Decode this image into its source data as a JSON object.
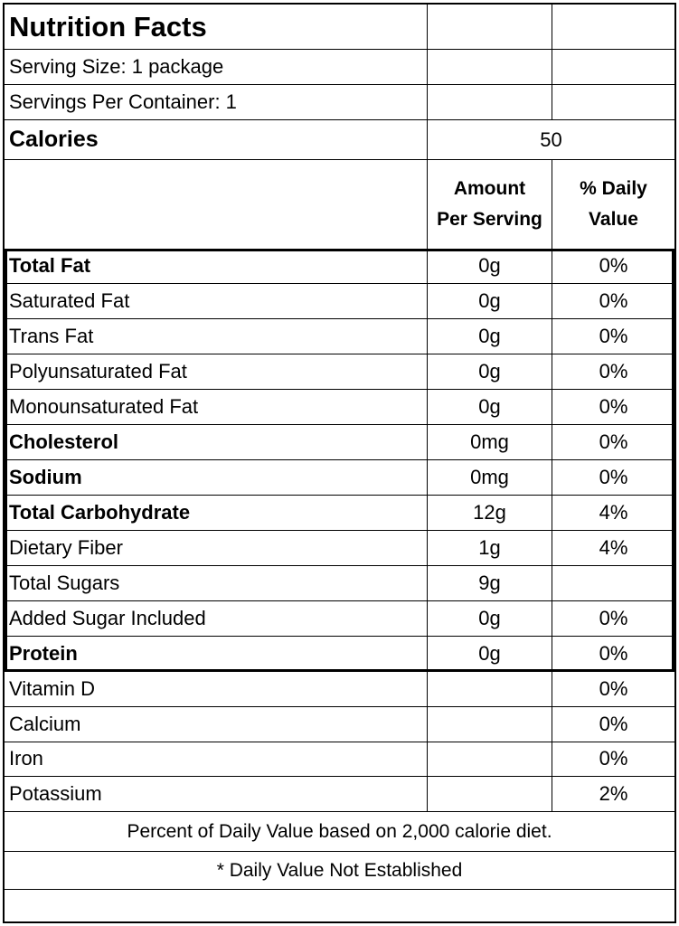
{
  "title": "Nutrition Facts",
  "serving_size": "Serving Size: 1 package",
  "servings_per_container": "Servings Per Container: 1",
  "calories": {
    "label": "Calories",
    "value": "50"
  },
  "columns": {
    "amount_line1": "Amount",
    "amount_line2": "Per Serving",
    "dv_line1": "% Daily",
    "dv_line2": "Value"
  },
  "nutrients": [
    {
      "name": "Total Fat",
      "amount": "0g",
      "dv": "0%",
      "bold": true
    },
    {
      "name": "Saturated Fat",
      "amount": "0g",
      "dv": "0%",
      "bold": false
    },
    {
      "name": "Trans Fat",
      "amount": "0g",
      "dv": "0%",
      "bold": false
    },
    {
      "name": "Polyunsaturated Fat",
      "amount": "0g",
      "dv": "0%",
      "bold": false
    },
    {
      "name": "Monounsaturated Fat",
      "amount": "0g",
      "dv": "0%",
      "bold": false
    },
    {
      "name": "Cholesterol",
      "amount": "0mg",
      "dv": "0%",
      "bold": true
    },
    {
      "name": "Sodium",
      "amount": "0mg",
      "dv": "0%",
      "bold": true
    },
    {
      "name": "Total Carbohydrate",
      "amount": "12g",
      "dv": "4%",
      "bold": true
    },
    {
      "name": "Dietary Fiber",
      "amount": "1g",
      "dv": "4%",
      "bold": false
    },
    {
      "name": "Total Sugars",
      "amount": "9g",
      "dv": "",
      "bold": false
    },
    {
      "name": "Added Sugar Included",
      "amount": "0g",
      "dv": "0%",
      "bold": false
    },
    {
      "name": "Protein",
      "amount": "0g",
      "dv": "0%",
      "bold": true
    }
  ],
  "vitamins": [
    {
      "name": "Vitamin D",
      "amount": "",
      "dv": "0%"
    },
    {
      "name": "Calcium",
      "amount": "",
      "dv": "0%"
    },
    {
      "name": "Iron",
      "amount": "",
      "dv": "0%"
    },
    {
      "name": "Potassium",
      "amount": "",
      "dv": "2%"
    }
  ],
  "footnote": "Percent of Daily Value based on 2,000 calorie diet.",
  "note": "* Daily Value Not Established"
}
